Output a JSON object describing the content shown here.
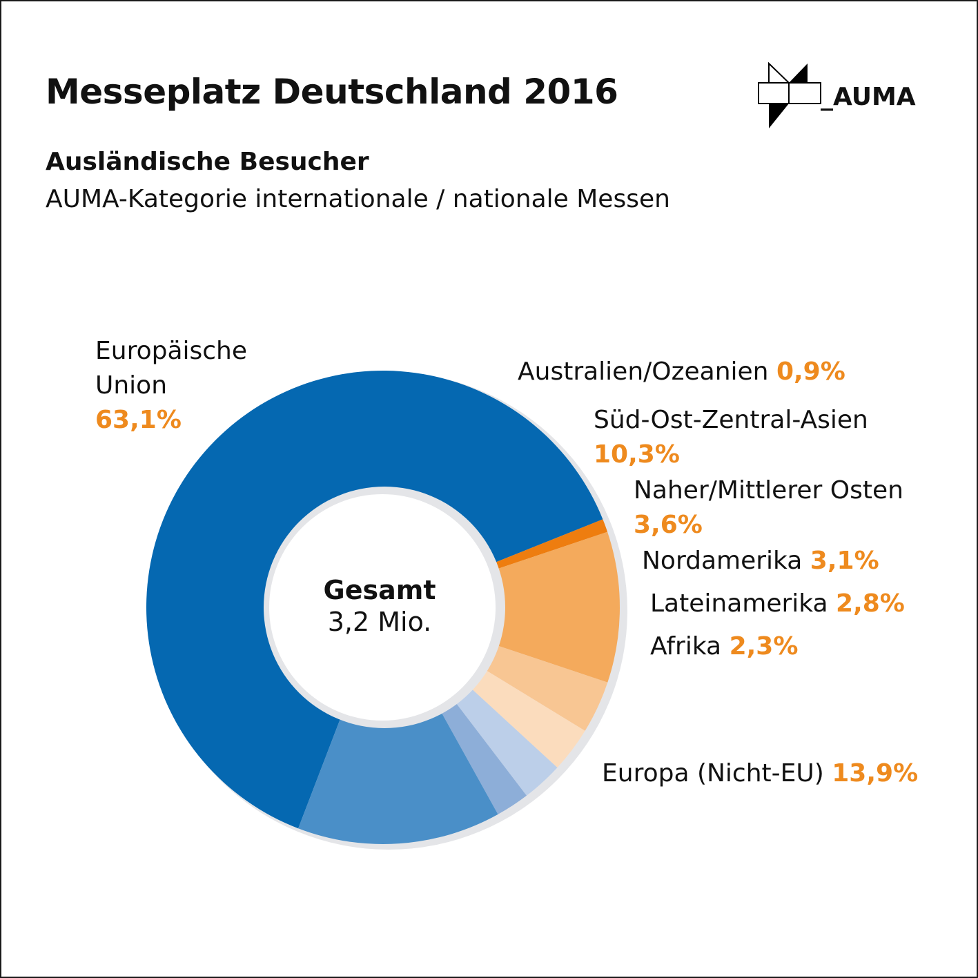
{
  "header": {
    "title": "Messeplatz Deutschland 2016",
    "subtitle": "Ausländische Besucher",
    "subtitle2": "AUMA-Kategorie internationale / nationale Messen",
    "logo_text": "_AUMA"
  },
  "center": {
    "label": "Gesamt",
    "value": "3,2 Mio."
  },
  "chart_data": {
    "type": "pie",
    "subtype": "donut",
    "categories": [
      "Europäische Union",
      "Australien/Ozeanien",
      "Süd-Ost-Zentral-Asien",
      "Naher/Mittlerer Osten",
      "Nordamerika",
      "Lateinamerika",
      "Afrika",
      "Europa (Nicht-EU)"
    ],
    "values": [
      63.1,
      0.9,
      10.3,
      3.6,
      3.1,
      2.8,
      2.3,
      13.9
    ],
    "value_labels": [
      "63,1%",
      "0,9%",
      "10,3%",
      "3,6%",
      "3,1%",
      "2,8%",
      "2,3%",
      "13,9%"
    ],
    "colors": [
      "#0568b1",
      "#ee7d0f",
      "#f4aa5c",
      "#f8c693",
      "#fbdcbd",
      "#bccfe9",
      "#8daed8",
      "#4a8fc8"
    ],
    "total": "3,2 Mio.",
    "unit": "%"
  }
}
